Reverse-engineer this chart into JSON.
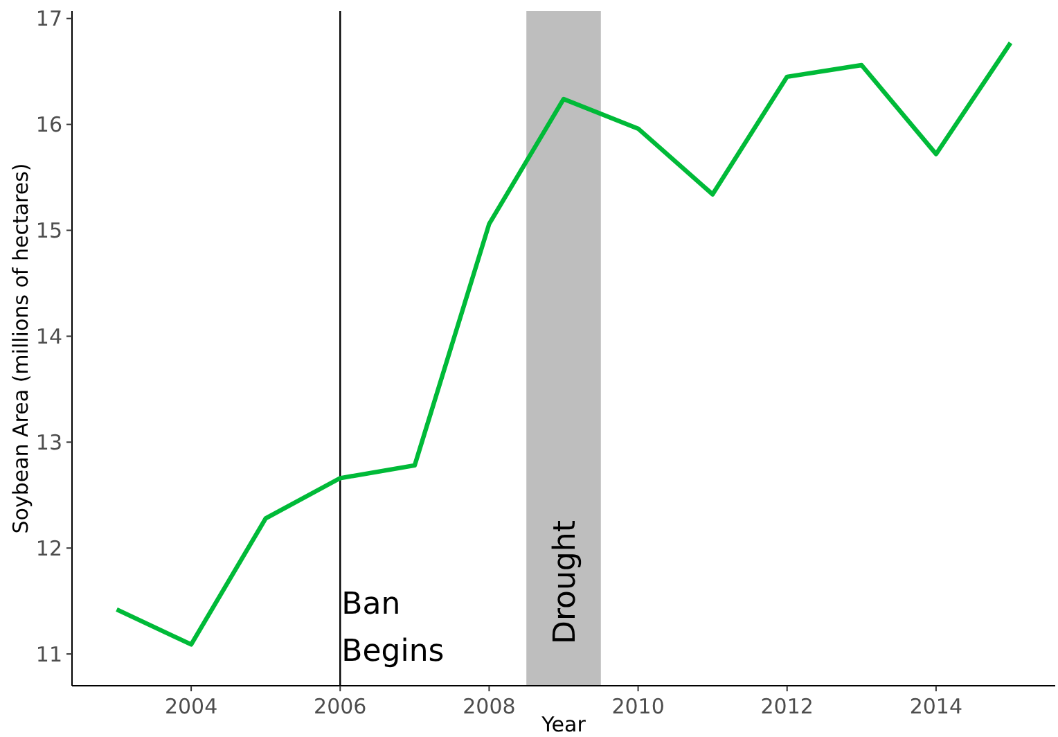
{
  "chart_data": {
    "type": "line",
    "xlabel": "Year",
    "ylabel": "Soybean Area (millions of hectares)",
    "x": [
      2003,
      2004,
      2005,
      2006,
      2007,
      2008,
      2009,
      2010,
      2011,
      2012,
      2013,
      2014,
      2015
    ],
    "series": [
      {
        "color": "#00ba38",
        "values": [
          11.42,
          11.09,
          12.28,
          12.66,
          12.78,
          15.06,
          16.24,
          15.96,
          15.34,
          16.45,
          16.56,
          15.72,
          16.77
        ]
      }
    ],
    "xlim": [
      2002.4,
      2015.6
    ],
    "xticks": [
      2004,
      2006,
      2008,
      2010,
      2012,
      2014
    ],
    "ylim": [
      10.7,
      17.07
    ],
    "yticks": [
      11,
      12,
      13,
      14,
      15,
      16,
      17
    ],
    "ref_lines": [
      {
        "axis": "x",
        "value": 2006,
        "label": "Ban Begins",
        "color": "#000000"
      }
    ],
    "bands": [
      {
        "axis": "x",
        "from": 2008.5,
        "to": 2009.5,
        "label": "Drought",
        "color": "#bebebe"
      }
    ],
    "grid": false,
    "marker": "none",
    "line_style": "solid"
  }
}
